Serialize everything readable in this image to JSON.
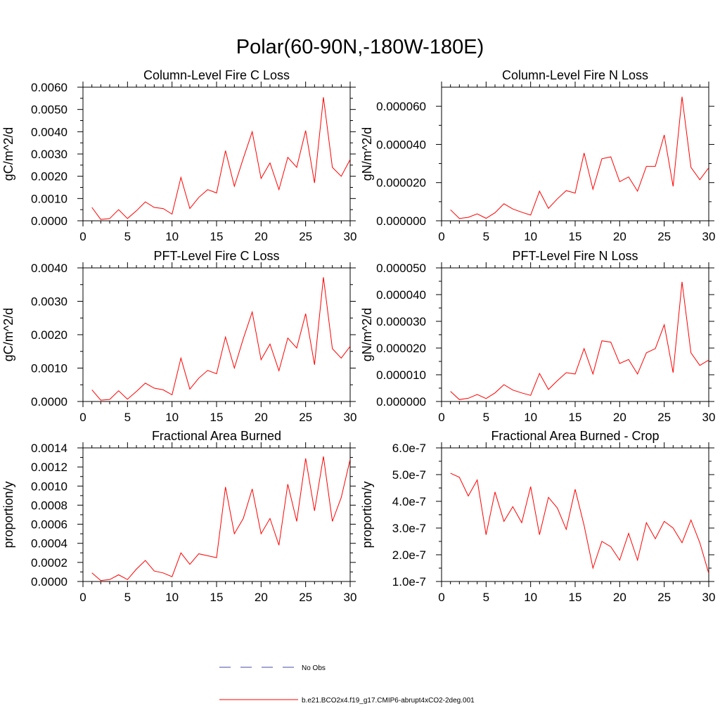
{
  "figure": {
    "title": "Polar(60-90N,-180W-180E)",
    "colors": {
      "model": "#ff0000",
      "obs": "#4a4aa8",
      "axes": "#000000"
    }
  },
  "legend": {
    "entries": [
      {
        "label": "No Obs",
        "style": "dashed",
        "color": "#4a4aa8"
      },
      {
        "label": "b.e21.BCO2x4.f19_g17.CMIP6-abrupt4xCO2-2deg.001",
        "style": "solid",
        "color": "#ff0000"
      }
    ]
  },
  "chart_data": [
    {
      "type": "line",
      "title": "Column-Level Fire C Loss",
      "xlabel": "",
      "ylabel": "gC/m^2/d",
      "xlim": [
        0,
        30
      ],
      "ylim": [
        0,
        0.006
      ],
      "xticks": [
        0,
        5,
        10,
        15,
        20,
        25,
        30
      ],
      "xtick_labels": [
        "0",
        "5",
        "10",
        "15",
        "20",
        "25",
        "30"
      ],
      "yticks": [
        0,
        0.001,
        0.002,
        0.003,
        0.004,
        0.005,
        0.006
      ],
      "ytick_labels": [
        "0.0000",
        "0.0010",
        "0.0020",
        "0.0030",
        "0.0040",
        "0.0050",
        "0.0060"
      ],
      "series": [
        {
          "name": "b.e21.BCO2x4.f19_g17.CMIP6-abrupt4xCO2-2deg.001",
          "x": [
            1,
            2,
            3,
            4,
            5,
            6,
            7,
            8,
            9,
            10,
            11,
            12,
            13,
            14,
            15,
            16,
            17,
            18,
            19,
            20,
            21,
            22,
            23,
            24,
            25,
            26,
            27,
            28,
            29,
            30
          ],
          "values": [
            0.0006,
            6e-05,
            0.0001,
            0.0005,
            0.0001,
            0.00045,
            0.00085,
            0.0006,
            0.00055,
            0.0003,
            0.00195,
            0.00055,
            0.00105,
            0.0014,
            0.00125,
            0.00315,
            0.00155,
            0.0028,
            0.004,
            0.0019,
            0.0026,
            0.0014,
            0.00285,
            0.0024,
            0.00405,
            0.0017,
            0.00555,
            0.0024,
            0.002,
            0.00275
          ]
        }
      ]
    },
    {
      "type": "line",
      "title": "Column-Level Fire N Loss",
      "xlabel": "",
      "ylabel": "gN/m^2/d",
      "xlim": [
        0,
        30
      ],
      "ylim": [
        0,
        7e-05
      ],
      "xticks": [
        0,
        5,
        10,
        15,
        20,
        25,
        30
      ],
      "xtick_labels": [
        "0",
        "5",
        "10",
        "15",
        "20",
        "25",
        "30"
      ],
      "yticks": [
        0,
        2e-05,
        4e-05,
        6e-05
      ],
      "ytick_labels": [
        "0.000000",
        "0.000020",
        "0.000040",
        "0.000060"
      ],
      "series": [
        {
          "name": "b.e21.BCO2x4.f19_g17.CMIP6-abrupt4xCO2-2deg.001",
          "x": [
            1,
            2,
            3,
            4,
            5,
            6,
            7,
            8,
            9,
            10,
            11,
            12,
            13,
            14,
            15,
            16,
            17,
            18,
            19,
            20,
            21,
            22,
            23,
            24,
            25,
            26,
            27,
            28,
            29,
            30
          ],
          "values": [
            5.8e-06,
            1.2e-06,
            1.8e-06,
            3.6e-06,
            1.3e-06,
            4.2e-06,
            8.9e-06,
            6.2e-06,
            4.5e-06,
            3e-06,
            1.55e-05,
            6.5e-06,
            1.15e-05,
            1.58e-05,
            1.45e-05,
            3.55e-05,
            1.65e-05,
            3.25e-05,
            3.35e-05,
            2.05e-05,
            2.3e-05,
            1.55e-05,
            2.85e-05,
            2.85e-05,
            4.5e-05,
            1.8e-05,
            6.5e-05,
            2.8e-05,
            2.15e-05,
            2.78e-05
          ]
        }
      ]
    },
    {
      "type": "line",
      "title": "PFT-Level Fire C Loss",
      "xlabel": "",
      "ylabel": "gC/m^2/d",
      "xlim": [
        0,
        30
      ],
      "ylim": [
        0,
        0.004
      ],
      "xticks": [
        0,
        5,
        10,
        15,
        20,
        25,
        30
      ],
      "xtick_labels": [
        "0",
        "5",
        "10",
        "15",
        "20",
        "25",
        "30"
      ],
      "yticks": [
        0,
        0.001,
        0.002,
        0.003,
        0.004
      ],
      "ytick_labels": [
        "0.0000",
        "0.0010",
        "0.0020",
        "0.0030",
        "0.0040"
      ],
      "series": [
        {
          "name": "b.e21.BCO2x4.f19_g17.CMIP6-abrupt4xCO2-2deg.001",
          "x": [
            1,
            2,
            3,
            4,
            5,
            6,
            7,
            8,
            9,
            10,
            11,
            12,
            13,
            14,
            15,
            16,
            17,
            18,
            19,
            20,
            21,
            22,
            23,
            24,
            25,
            26,
            27,
            28,
            29,
            30
          ],
          "values": [
            0.00035,
            4e-05,
            6e-05,
            0.00032,
            7e-05,
            0.0003,
            0.00055,
            0.0004,
            0.00035,
            0.0002,
            0.0013,
            0.00037,
            0.0007,
            0.00093,
            0.00083,
            0.00193,
            0.001,
            0.00188,
            0.00268,
            0.00125,
            0.00172,
            0.00092,
            0.0019,
            0.0016,
            0.00263,
            0.0011,
            0.00372,
            0.00158,
            0.0013,
            0.00165
          ]
        }
      ]
    },
    {
      "type": "line",
      "title": "PFT-Level Fire N Loss",
      "xlabel": "",
      "ylabel": "gN/m^2/d",
      "xlim": [
        0,
        30
      ],
      "ylim": [
        0,
        5e-05
      ],
      "xticks": [
        0,
        5,
        10,
        15,
        20,
        25,
        30
      ],
      "xtick_labels": [
        "0",
        "5",
        "10",
        "15",
        "20",
        "25",
        "30"
      ],
      "yticks": [
        0,
        1e-05,
        2e-05,
        3e-05,
        4e-05,
        5e-05
      ],
      "ytick_labels": [
        "0.000000",
        "0.000010",
        "0.000020",
        "0.000030",
        "0.000040",
        "0.000050"
      ],
      "series": [
        {
          "name": "b.e21.BCO2x4.f19_g17.CMIP6-abrupt4xCO2-2deg.001",
          "x": [
            1,
            2,
            3,
            4,
            5,
            6,
            7,
            8,
            9,
            10,
            11,
            12,
            13,
            14,
            15,
            16,
            17,
            18,
            19,
            20,
            21,
            22,
            23,
            24,
            25,
            26,
            27,
            28,
            29,
            30
          ],
          "values": [
            3.8e-06,
            7e-07,
            1.2e-06,
            2.6e-06,
            1.1e-06,
            3.2e-06,
            6.3e-06,
            4.3e-06,
            3.2e-06,
            2.3e-06,
            1.05e-05,
            4.5e-06,
            7.8e-06,
            1.08e-05,
            1.03e-05,
            1.98e-05,
            1.03e-05,
            2.27e-05,
            2.22e-05,
            1.42e-05,
            1.57e-05,
            1.03e-05,
            1.82e-05,
            1.98e-05,
            2.87e-05,
            1.08e-05,
            4.48e-05,
            1.82e-05,
            1.35e-05,
            1.55e-05
          ]
        }
      ]
    },
    {
      "type": "line",
      "title": "Fractional Area Burned",
      "xlabel": "",
      "ylabel": "proportion/y",
      "xlim": [
        0,
        30
      ],
      "ylim": [
        0,
        0.0014
      ],
      "xticks": [
        0,
        5,
        10,
        15,
        20,
        25,
        30
      ],
      "xtick_labels": [
        "0",
        "5",
        "10",
        "15",
        "20",
        "25",
        "30"
      ],
      "yticks": [
        0,
        0.0002,
        0.0004,
        0.0006,
        0.0008,
        0.001,
        0.0012,
        0.0014
      ],
      "ytick_labels": [
        "0.0000",
        "0.0002",
        "0.0004",
        "0.0006",
        "0.0008",
        "0.0010",
        "0.0012",
        "0.0014"
      ],
      "series": [
        {
          "name": "b.e21.BCO2x4.f19_g17.CMIP6-abrupt4xCO2-2deg.001",
          "x": [
            1,
            2,
            3,
            4,
            5,
            6,
            7,
            8,
            9,
            10,
            11,
            12,
            13,
            14,
            15,
            16,
            17,
            18,
            19,
            20,
            21,
            22,
            23,
            24,
            25,
            26,
            27,
            28,
            29,
            30
          ],
          "values": [
            9e-05,
            1e-05,
            2e-05,
            7e-05,
            2e-05,
            0.00013,
            0.00022,
            0.00011,
            9e-05,
            5e-05,
            0.0003,
            0.00018,
            0.00029,
            0.00027,
            0.00025,
            0.00099,
            0.0005,
            0.00066,
            0.00097,
            0.0005,
            0.00066,
            0.00038,
            0.00102,
            0.00063,
            0.00129,
            0.00074,
            0.00131,
            0.00063,
            0.00088,
            0.00128
          ]
        }
      ]
    },
    {
      "type": "line",
      "title": "Fractional Area Burned - Crop",
      "xlabel": "",
      "ylabel": "proportion/y",
      "xlim": [
        0,
        30
      ],
      "ylim": [
        1e-07,
        6e-07
      ],
      "xticks": [
        0,
        5,
        10,
        15,
        20,
        25,
        30
      ],
      "xtick_labels": [
        "0",
        "5",
        "10",
        "15",
        "20",
        "25",
        "30"
      ],
      "yticks": [
        1e-07,
        2e-07,
        3e-07,
        4e-07,
        5e-07,
        6e-07
      ],
      "ytick_labels": [
        "1.0e-7",
        "2.0e-7",
        "3.0e-7",
        "4.0e-7",
        "5.0e-7",
        "6.0e-7"
      ],
      "series": [
        {
          "name": "b.e21.BCO2x4.f19_g17.CMIP6-abrupt4xCO2-2deg.001",
          "x": [
            1,
            2,
            3,
            4,
            5,
            6,
            7,
            8,
            9,
            10,
            11,
            12,
            13,
            14,
            15,
            16,
            17,
            18,
            19,
            20,
            21,
            22,
            23,
            24,
            25,
            26,
            27,
            28,
            29,
            30
          ],
          "values": [
            5.05e-07,
            4.9e-07,
            4.2e-07,
            4.8e-07,
            2.75e-07,
            4.35e-07,
            3.25e-07,
            3.8e-07,
            3.2e-07,
            4.55e-07,
            2.75e-07,
            4.15e-07,
            3.75e-07,
            2.95e-07,
            4.45e-07,
            3.1e-07,
            1.5e-07,
            2.5e-07,
            2.3e-07,
            1.8e-07,
            2.8e-07,
            1.8e-07,
            3.2e-07,
            2.6e-07,
            3.25e-07,
            3e-07,
            2.45e-07,
            3.3e-07,
            2.45e-07,
            1.3e-07
          ]
        }
      ]
    }
  ]
}
